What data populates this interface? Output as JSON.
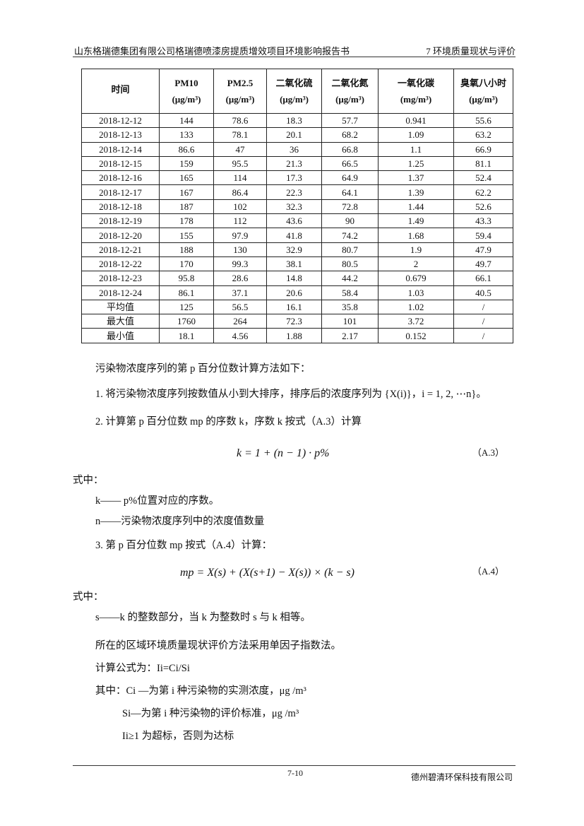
{
  "header": {
    "left": "山东格瑞德集团有限公司格瑞德喷漆房提质增效项目环境影响报告书",
    "right": "7 环境质量现状与评价"
  },
  "table": {
    "columns": [
      {
        "name": "时间",
        "unit": ""
      },
      {
        "name": "PM10",
        "unit": "(μg/m³)"
      },
      {
        "name": "PM2.5",
        "unit": "(μg/m³)"
      },
      {
        "name": "二氧化硫",
        "unit": "(μg/m³)"
      },
      {
        "name": "二氧化氮",
        "unit": "(μg/m³)"
      },
      {
        "name": "一氧化碳",
        "unit": "(mg/m³)"
      },
      {
        "name": "臭氧八小时",
        "unit": "(μg/m³)"
      }
    ],
    "rows": [
      [
        "2018-12-12",
        "144",
        "78.6",
        "18.3",
        "57.7",
        "0.941",
        "55.6"
      ],
      [
        "2018-12-13",
        "133",
        "78.1",
        "20.1",
        "68.2",
        "1.09",
        "63.2"
      ],
      [
        "2018-12-14",
        "86.6",
        "47",
        "36",
        "66.8",
        "1.1",
        "66.9"
      ],
      [
        "2018-12-15",
        "159",
        "95.5",
        "21.3",
        "66.5",
        "1.25",
        "81.1"
      ],
      [
        "2018-12-16",
        "165",
        "114",
        "17.3",
        "64.9",
        "1.37",
        "52.4"
      ],
      [
        "2018-12-17",
        "167",
        "86.4",
        "22.3",
        "64.1",
        "1.39",
        "62.2"
      ],
      [
        "2018-12-18",
        "187",
        "102",
        "32.3",
        "72.8",
        "1.44",
        "52.6"
      ],
      [
        "2018-12-19",
        "178",
        "112",
        "43.6",
        "90",
        "1.49",
        "43.3"
      ],
      [
        "2018-12-20",
        "155",
        "97.9",
        "41.8",
        "74.2",
        "1.68",
        "59.4"
      ],
      [
        "2018-12-21",
        "188",
        "130",
        "32.9",
        "80.7",
        "1.9",
        "47.9"
      ],
      [
        "2018-12-22",
        "170",
        "99.3",
        "38.1",
        "80.5",
        "2",
        "49.7"
      ],
      [
        "2018-12-23",
        "95.8",
        "28.6",
        "14.8",
        "44.2",
        "0.679",
        "66.1"
      ],
      [
        "2018-12-24",
        "86.1",
        "37.1",
        "20.6",
        "58.4",
        "1.03",
        "40.5"
      ],
      [
        "平均值",
        "125",
        "56.5",
        "16.1",
        "35.8",
        "1.02",
        "/"
      ],
      [
        "最大值",
        "1760",
        "264",
        "72.3",
        "101",
        "3.72",
        "/"
      ],
      [
        "最小值",
        "18.1",
        "4.56",
        "1.88",
        "2.17",
        "0.152",
        "/"
      ]
    ]
  },
  "body": {
    "intro": "污染物浓度序列的第 p 百分位数计算方法如下：",
    "step1": "1. 将污染物浓度序列按数值从小到大排序，排序后的浓度序列为 {X(i)}，i = 1, 2, ⋯n}。",
    "step2": "2. 计算第 p 百分位数 mp 的序数 k，序数 k 按式（A.3）计算",
    "eq3": "k = 1 + (n − 1) · p%",
    "eq3_no": "（A.3）",
    "where1": "式中：",
    "def_k": "k—— p%位置对应的序数。",
    "def_n": "n——污染物浓度序列中的浓度值数量",
    "step3": "3. 第 p 百分位数 mp 按式（A.4）计算：",
    "eq4": "mp = X(s) + (X(s+1) − X(s)) × (k − s)",
    "eq4_no": "（A.4）",
    "where2": "式中：",
    "def_s": "s——k 的整数部分，当 k 为整数时 s 与 k 相等。",
    "method": "所在的区域环境质量现状评价方法采用单因子指数法。",
    "formula": "计算公式为：Ii=Ci/Si",
    "ci": "其中：Ci —为第 i 种污染物的实测浓度，μg /m³",
    "si": "Si—为第 i 种污染物的评价标准，μg /m³",
    "ii": "Ii≥1 为超标，否则为达标"
  },
  "footer": {
    "page": "7-10",
    "company": "德州碧清环保科技有限公司"
  }
}
